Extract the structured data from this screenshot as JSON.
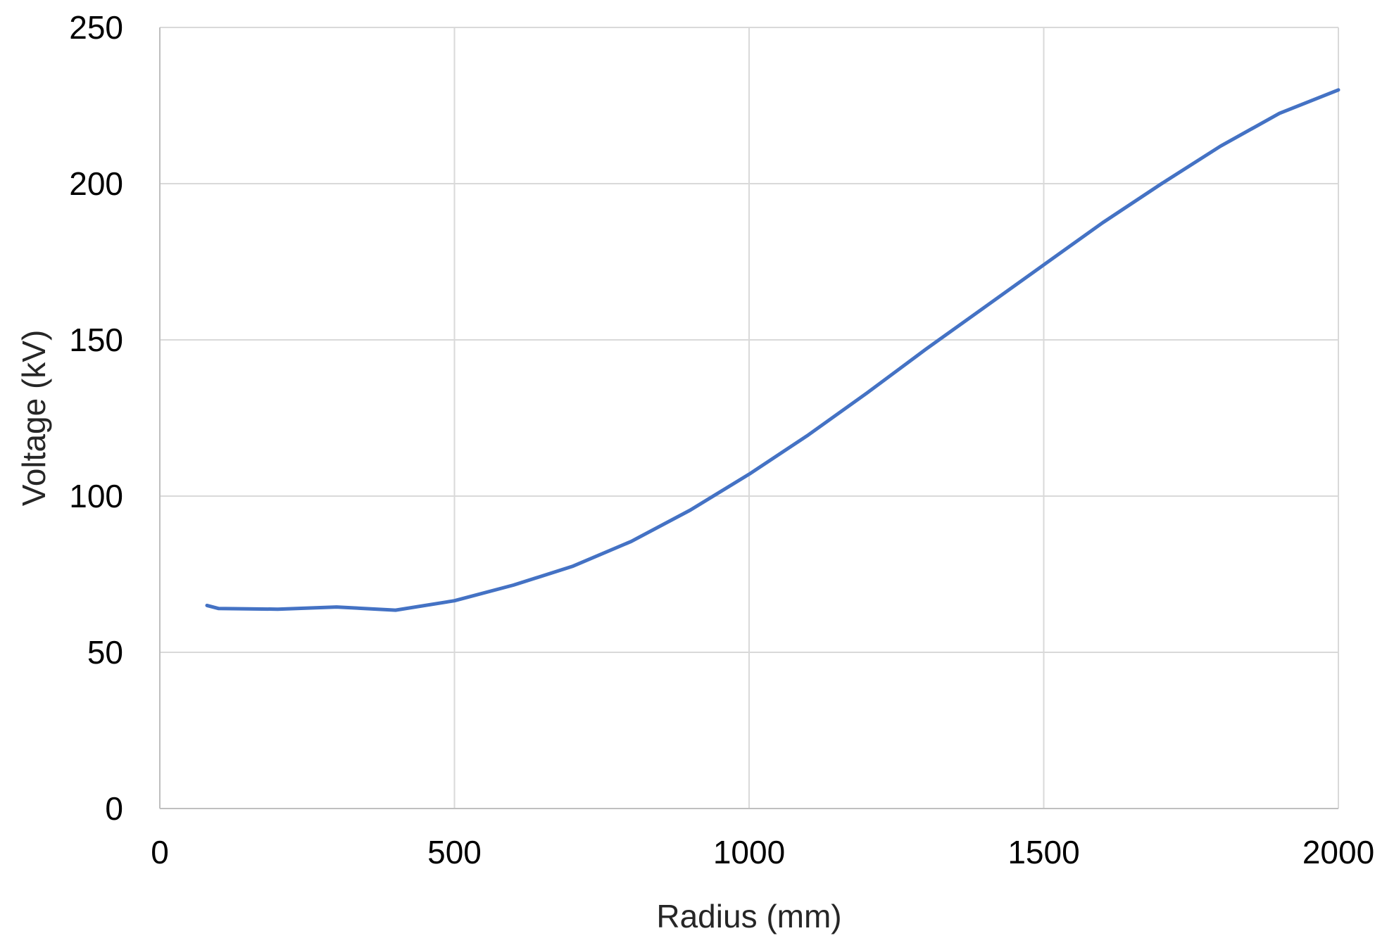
{
  "chart_data": {
    "type": "line",
    "xlabel": "Radius (mm)",
    "ylabel": "Voltage (kV)",
    "xlim": [
      0,
      2000
    ],
    "ylim": [
      0,
      250
    ],
    "x_ticks": [
      0,
      500,
      1000,
      1500,
      2000
    ],
    "y_ticks": [
      0,
      50,
      100,
      150,
      200,
      250
    ],
    "grid": true,
    "legend": "none",
    "series": [
      {
        "color": "#4472c4",
        "points": [
          [
            80,
            65.0
          ],
          [
            100,
            64.0
          ],
          [
            200,
            63.8
          ],
          [
            300,
            64.5
          ],
          [
            400,
            63.5
          ],
          [
            500,
            66.5
          ],
          [
            600,
            71.5
          ],
          [
            700,
            77.5
          ],
          [
            800,
            85.5
          ],
          [
            900,
            95.5
          ],
          [
            1000,
            107.0
          ],
          [
            1100,
            119.5
          ],
          [
            1200,
            133.0
          ],
          [
            1300,
            147.0
          ],
          [
            1400,
            160.5
          ],
          [
            1500,
            174.0
          ],
          [
            1600,
            187.5
          ],
          [
            1700,
            200.0
          ],
          [
            1800,
            212.0
          ],
          [
            1900,
            222.5
          ],
          [
            2000,
            230.0
          ]
        ]
      }
    ]
  }
}
